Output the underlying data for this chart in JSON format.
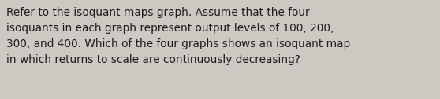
{
  "text": "Refer to the isoquant maps graph. Assume that the four\nisoquants in each graph represent output levels of 100, 200,\n300, and 400. Which of the four graphs shows an isoquant map\nin which returns to scale are continuously decreasing?",
  "background_color": "#cdc9c2",
  "text_color": "#1c1c1c",
  "font_size": 9.8,
  "font_weight": "normal",
  "fig_width": 5.58,
  "fig_height": 1.26,
  "dpi": 100
}
